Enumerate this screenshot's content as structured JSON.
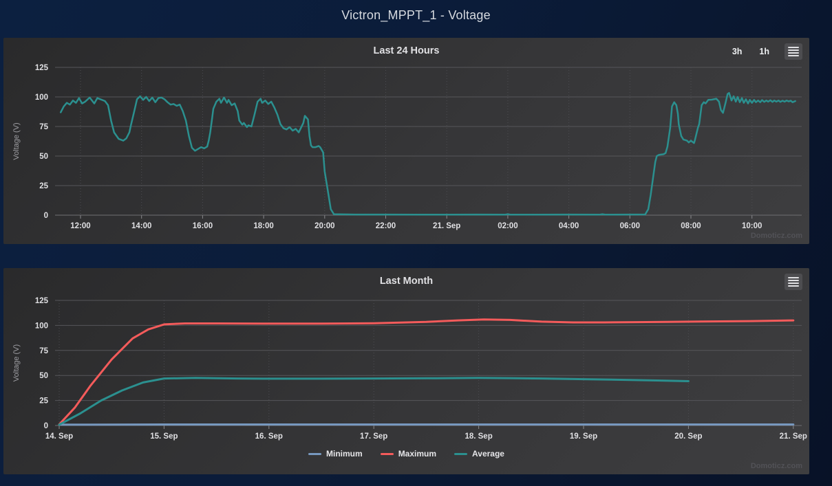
{
  "page": {
    "title": "Victron_MPPT_1 - Voltage",
    "watermark": "Domoticz.com"
  },
  "chart_data": [
    {
      "id": "last-24-hours",
      "type": "line",
      "title": "Last 24 Hours",
      "range_selector": [
        "3h",
        "1h"
      ],
      "ylabel": "Voltage (V)",
      "ylim": [
        0,
        125
      ],
      "yticks": [
        0,
        25,
        50,
        75,
        100,
        125
      ],
      "x_unit": "hour-of-day from 20 Sep (24+ = 21 Sep)",
      "xlim": [
        11.3,
        35.5
      ],
      "xticks": [
        {
          "x": 12,
          "label": "12:00"
        },
        {
          "x": 14,
          "label": "14:00"
        },
        {
          "x": 16,
          "label": "16:00"
        },
        {
          "x": 18,
          "label": "18:00"
        },
        {
          "x": 20,
          "label": "20:00"
        },
        {
          "x": 22,
          "label": "22:00"
        },
        {
          "x": 24,
          "label": "21. Sep"
        },
        {
          "x": 26,
          "label": "02:00"
        },
        {
          "x": 28,
          "label": "04:00"
        },
        {
          "x": 30,
          "label": "06:00"
        },
        {
          "x": 32,
          "label": "08:00"
        },
        {
          "x": 34,
          "label": "10:00"
        }
      ],
      "grid": true,
      "legend_position": "none",
      "series": [
        {
          "name": "Voltage",
          "color": "#2b908f",
          "width": 2.5,
          "points": [
            [
              11.35,
              87
            ],
            [
              11.45,
              92
            ],
            [
              11.55,
              95
            ],
            [
              11.65,
              93.5
            ],
            [
              11.75,
              97
            ],
            [
              11.85,
              95
            ],
            [
              11.95,
              99
            ],
            [
              12.05,
              94.5
            ],
            [
              12.15,
              96
            ],
            [
              12.3,
              99.5
            ],
            [
              12.45,
              94.5
            ],
            [
              12.55,
              99
            ],
            [
              12.65,
              98
            ],
            [
              12.8,
              96.5
            ],
            [
              12.9,
              93
            ],
            [
              13.0,
              80
            ],
            [
              13.1,
              70
            ],
            [
              13.25,
              64.5
            ],
            [
              13.4,
              63
            ],
            [
              13.5,
              65
            ],
            [
              13.6,
              70
            ],
            [
              13.65,
              76
            ],
            [
              13.75,
              87
            ],
            [
              13.85,
              98
            ],
            [
              13.95,
              100.5
            ],
            [
              14.05,
              97.5
            ],
            [
              14.15,
              100
            ],
            [
              14.25,
              96.5
            ],
            [
              14.35,
              99.5
            ],
            [
              14.45,
              95.5
            ],
            [
              14.55,
              99
            ],
            [
              14.65,
              99.5
            ],
            [
              14.75,
              98
            ],
            [
              14.85,
              95.5
            ],
            [
              14.95,
              93.5
            ],
            [
              15.05,
              94
            ],
            [
              15.15,
              92.5
            ],
            [
              15.25,
              93.5
            ],
            [
              15.35,
              88
            ],
            [
              15.45,
              80
            ],
            [
              15.55,
              67
            ],
            [
              15.65,
              57
            ],
            [
              15.75,
              54.5
            ],
            [
              15.85,
              56
            ],
            [
              15.95,
              57.5
            ],
            [
              16.05,
              56.5
            ],
            [
              16.15,
              58
            ],
            [
              16.2,
              63
            ],
            [
              16.25,
              70
            ],
            [
              16.3,
              80
            ],
            [
              16.35,
              90
            ],
            [
              16.45,
              96
            ],
            [
              16.55,
              98.5
            ],
            [
              16.6,
              95
            ],
            [
              16.7,
              99.5
            ],
            [
              16.8,
              95
            ],
            [
              16.85,
              97.5
            ],
            [
              16.95,
              93
            ],
            [
              17.05,
              94.5
            ],
            [
              17.15,
              88
            ],
            [
              17.2,
              80
            ],
            [
              17.3,
              76.5
            ],
            [
              17.35,
              78
            ],
            [
              17.45,
              74.5
            ],
            [
              17.5,
              76
            ],
            [
              17.6,
              75
            ],
            [
              17.7,
              85
            ],
            [
              17.8,
              96
            ],
            [
              17.9,
              98.5
            ],
            [
              17.95,
              95
            ],
            [
              18.05,
              97
            ],
            [
              18.15,
              94
            ],
            [
              18.25,
              96
            ],
            [
              18.35,
              91
            ],
            [
              18.45,
              85
            ],
            [
              18.55,
              77
            ],
            [
              18.65,
              73.5
            ],
            [
              18.75,
              72.5
            ],
            [
              18.85,
              74.5
            ],
            [
              18.95,
              71.5
            ],
            [
              19.05,
              73
            ],
            [
              19.15,
              70
            ],
            [
              19.3,
              78
            ],
            [
              19.35,
              84
            ],
            [
              19.45,
              81
            ],
            [
              19.5,
              67
            ],
            [
              19.55,
              59
            ],
            [
              19.6,
              57.5
            ],
            [
              19.7,
              57.5
            ],
            [
              19.8,
              58.5
            ],
            [
              19.85,
              57.5
            ],
            [
              19.95,
              53
            ],
            [
              20.0,
              37
            ],
            [
              20.1,
              21
            ],
            [
              20.2,
              5
            ],
            [
              20.3,
              0.8
            ],
            [
              21,
              0.5
            ],
            [
              22,
              0.5
            ],
            [
              23,
              0.4
            ],
            [
              24,
              0.4
            ],
            [
              25,
              0.5
            ],
            [
              25.9,
              0.4
            ],
            [
              26,
              0.8
            ],
            [
              26.1,
              0.4
            ],
            [
              27,
              0.4
            ],
            [
              28,
              0.5
            ],
            [
              29,
              0.4
            ],
            [
              29.1,
              0.8
            ],
            [
              29.2,
              0.4
            ],
            [
              30,
              0.5
            ],
            [
              30.5,
              0.6
            ],
            [
              30.6,
              5
            ],
            [
              30.68,
              17
            ],
            [
              30.75,
              30
            ],
            [
              30.83,
              45
            ],
            [
              30.88,
              50
            ],
            [
              30.95,
              51
            ],
            [
              31.1,
              51.5
            ],
            [
              31.17,
              52.5
            ],
            [
              31.23,
              58
            ],
            [
              31.32,
              74
            ],
            [
              31.38,
              92
            ],
            [
              31.45,
              95.5
            ],
            [
              31.52,
              93
            ],
            [
              31.57,
              86
            ],
            [
              31.6,
              77
            ],
            [
              31.68,
              67
            ],
            [
              31.75,
              64
            ],
            [
              31.87,
              63
            ],
            [
              31.93,
              61.5
            ],
            [
              32.0,
              63
            ],
            [
              32.1,
              61
            ],
            [
              32.13,
              63.5
            ],
            [
              32.23,
              74
            ],
            [
              32.27,
              77
            ],
            [
              32.35,
              93
            ],
            [
              32.42,
              95.5
            ],
            [
              32.48,
              94.5
            ],
            [
              32.57,
              97.5
            ],
            [
              32.68,
              97.7
            ],
            [
              32.83,
              98.5
            ],
            [
              32.92,
              96
            ],
            [
              32.98,
              89
            ],
            [
              33.05,
              86.5
            ],
            [
              33.13,
              94.7
            ],
            [
              33.2,
              102.5
            ],
            [
              33.25,
              103.4
            ],
            [
              33.33,
              97
            ],
            [
              33.4,
              100.5
            ],
            [
              33.47,
              96
            ],
            [
              33.53,
              100
            ],
            [
              33.6,
              95.5
            ],
            [
              33.67,
              99
            ],
            [
              33.73,
              95
            ],
            [
              33.8,
              98
            ],
            [
              33.87,
              94.5
            ],
            [
              33.93,
              97.5
            ],
            [
              34.0,
              95
            ],
            [
              34.07,
              97.5
            ],
            [
              34.13,
              95.5
            ],
            [
              34.2,
              97
            ],
            [
              34.27,
              95.5
            ],
            [
              34.33,
              97.3
            ],
            [
              34.4,
              95.8
            ],
            [
              34.47,
              97
            ],
            [
              34.53,
              96
            ],
            [
              34.6,
              97.2
            ],
            [
              34.67,
              95.8
            ],
            [
              34.73,
              97
            ],
            [
              34.8,
              96
            ],
            [
              34.87,
              97
            ],
            [
              34.93,
              95.8
            ],
            [
              35.0,
              96.8
            ],
            [
              35.07,
              96
            ],
            [
              35.13,
              97
            ],
            [
              35.2,
              96.2
            ],
            [
              35.27,
              96.8
            ],
            [
              35.33,
              95.5
            ],
            [
              35.42,
              96.5
            ]
          ]
        }
      ]
    },
    {
      "id": "last-month",
      "type": "line",
      "title": "Last Month",
      "ylabel": "Voltage (V)",
      "ylim": [
        0,
        125
      ],
      "yticks": [
        0,
        25,
        50,
        75,
        100,
        125
      ],
      "x_unit": "day of September",
      "xlim": [
        14,
        21
      ],
      "xticks": [
        {
          "x": 14,
          "label": "14. Sep"
        },
        {
          "x": 15,
          "label": "15. Sep"
        },
        {
          "x": 16,
          "label": "16. Sep"
        },
        {
          "x": 17,
          "label": "17. Sep"
        },
        {
          "x": 18,
          "label": "18. Sep"
        },
        {
          "x": 19,
          "label": "19. Sep"
        },
        {
          "x": 20,
          "label": "20. Sep"
        },
        {
          "x": 21,
          "label": "21. Sep"
        }
      ],
      "grid": true,
      "legend_position": "bottom",
      "series": [
        {
          "name": "Minimum",
          "color": "#7798BF",
          "width": 3,
          "points": [
            [
              14,
              0.8
            ],
            [
              15,
              1
            ],
            [
              16,
              1
            ],
            [
              17,
              1
            ],
            [
              18,
              1
            ],
            [
              19,
              1
            ],
            [
              20,
              1
            ],
            [
              21,
              1
            ]
          ]
        },
        {
          "name": "Maximum",
          "color": "#f45b5b",
          "width": 3,
          "points": [
            [
              14,
              1
            ],
            [
              14.15,
              18
            ],
            [
              14.3,
              40
            ],
            [
              14.5,
              66
            ],
            [
              14.7,
              87
            ],
            [
              14.85,
              96
            ],
            [
              15,
              101
            ],
            [
              15.2,
              102
            ],
            [
              15.5,
              102
            ],
            [
              16,
              101.8
            ],
            [
              16.5,
              101.8
            ],
            [
              17,
              102.2
            ],
            [
              17.5,
              103.5
            ],
            [
              17.8,
              105
            ],
            [
              18.05,
              106
            ],
            [
              18.3,
              105.5
            ],
            [
              18.6,
              103.8
            ],
            [
              18.9,
              103
            ],
            [
              19.2,
              103
            ],
            [
              19.5,
              103.3
            ],
            [
              19.8,
              103.6
            ],
            [
              20.2,
              104
            ],
            [
              20.6,
              104.3
            ],
            [
              21,
              105
            ]
          ]
        },
        {
          "name": "Average",
          "color": "#2b908f",
          "width": 3,
          "points": [
            [
              14,
              0.8
            ],
            [
              14.2,
              12
            ],
            [
              14.4,
              25
            ],
            [
              14.6,
              35
            ],
            [
              14.8,
              43
            ],
            [
              15,
              47
            ],
            [
              15.3,
              47.5
            ],
            [
              15.7,
              47
            ],
            [
              16,
              46.8
            ],
            [
              16.5,
              46.8
            ],
            [
              17,
              47
            ],
            [
              17.5,
              47.2
            ],
            [
              18,
              47.5
            ],
            [
              18.3,
              47.3
            ],
            [
              18.6,
              47
            ],
            [
              19,
              46.3
            ],
            [
              19.4,
              45.6
            ],
            [
              19.7,
              45
            ],
            [
              20,
              44.3
            ]
          ]
        }
      ]
    }
  ]
}
